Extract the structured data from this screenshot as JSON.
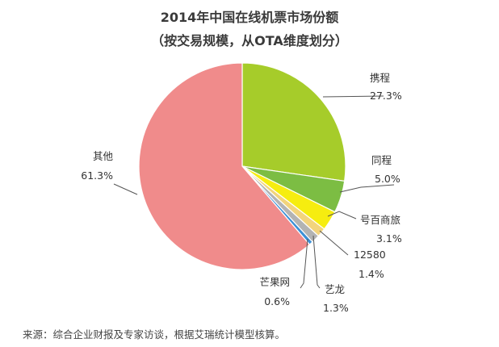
{
  "chart_data": {
    "type": "pie",
    "title": "2014年中国在线机票市场份额",
    "subtitle": "（按交易规模，从OTA维度划分）",
    "start_angle_deg": 0,
    "direction": "clockwise",
    "slices": [
      {
        "name": "携程",
        "label": "27.3%",
        "value": 27.3,
        "color": "#a6cc2a"
      },
      {
        "name": "同程",
        "label": "5.0%",
        "value": 5.0,
        "color": "#7cbd43"
      },
      {
        "name": "号百商旅",
        "label": "3.1%",
        "value": 3.1,
        "color": "#f6ed10"
      },
      {
        "name": "12580",
        "label": "1.4%",
        "value": 1.4,
        "color": "#f2d47c"
      },
      {
        "name": "艺龙",
        "label": "1.3%",
        "value": 1.3,
        "color": "#b3b3b3"
      },
      {
        "name": "芒果网",
        "label": "0.6%",
        "value": 0.6,
        "color": "#3b8fd6"
      },
      {
        "name": "其他",
        "label": "61.3%",
        "value": 61.3,
        "color": "#f08b8b"
      }
    ],
    "source": "来源：综合企业财报及专家访谈，根据艾瑞统计模型核算。"
  }
}
